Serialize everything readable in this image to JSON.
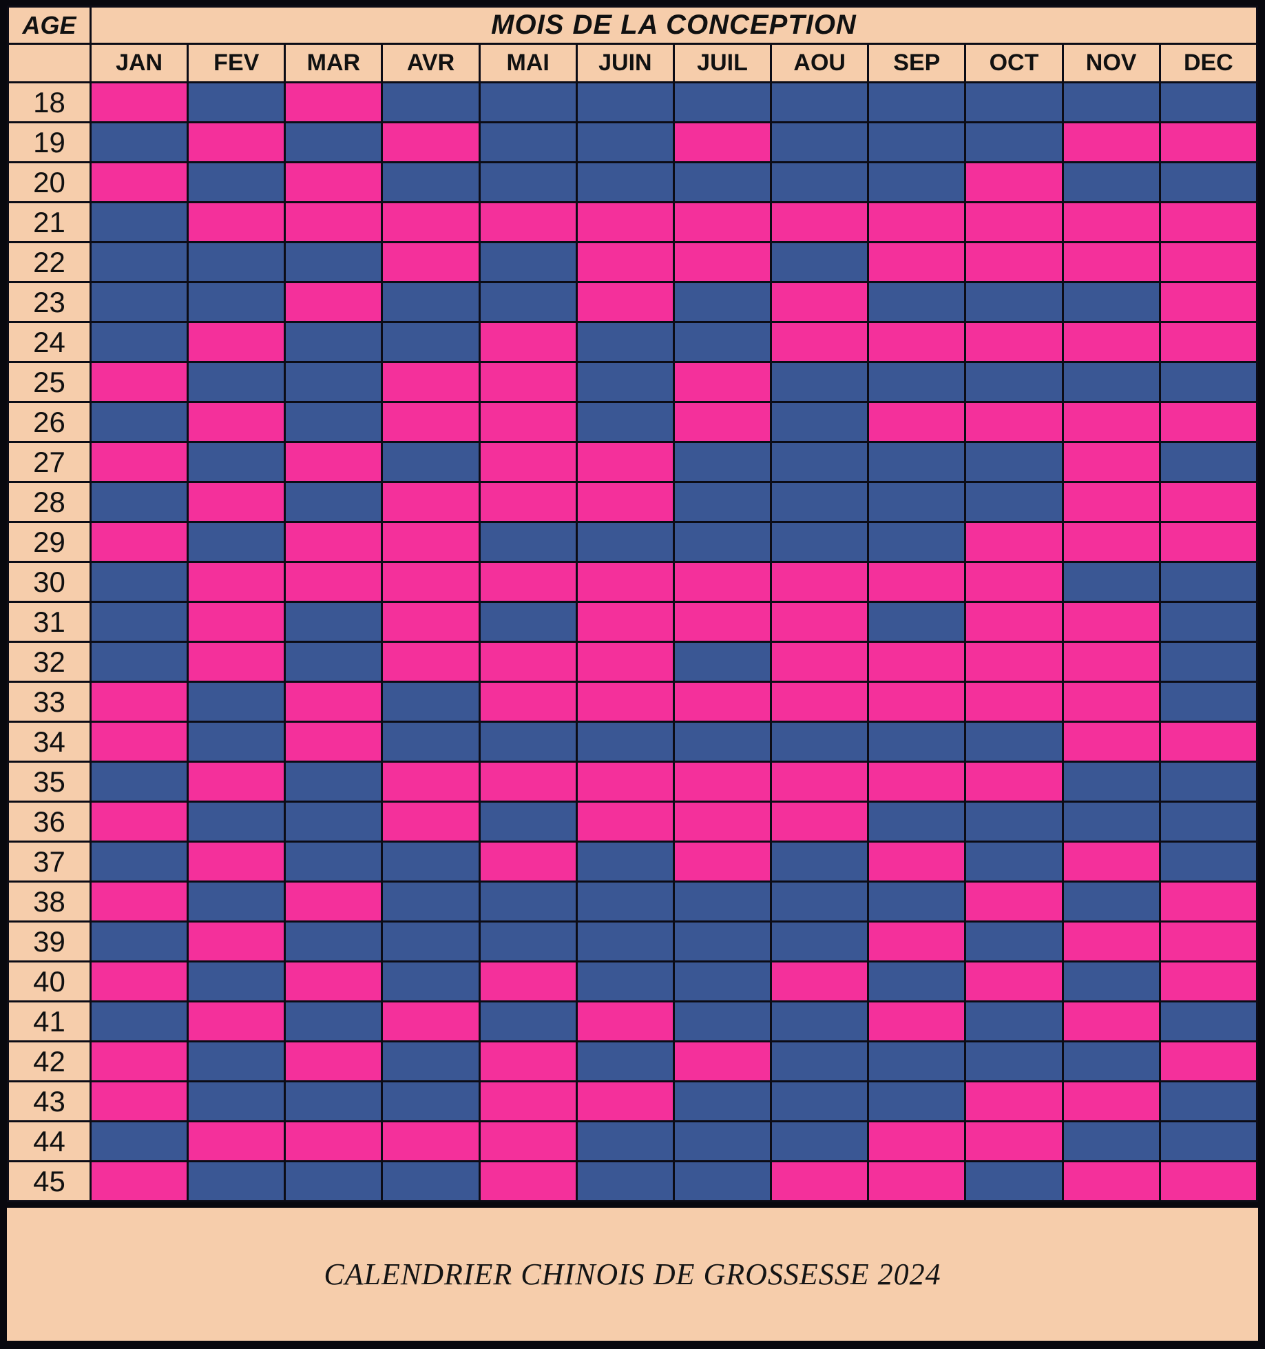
{
  "header": {
    "age_label": "AGE",
    "months_title": "MOIS DE LA CONCEPTION"
  },
  "footer": {
    "caption": "CALENDRIER CHINOIS DE GROSSESSE 2024"
  },
  "colors": {
    "girl_pink": "#f4309b",
    "boy_blue": "#3a5794",
    "header_peach": "#f6cdab",
    "grid_line": "#0c0c16"
  },
  "chart_data": {
    "type": "heatmap",
    "title": "CALENDRIER CHINOIS DE GROSSESSE 2024",
    "xlabel": "MOIS DE LA CONCEPTION",
    "ylabel": "AGE",
    "x_categories": [
      "JAN",
      "FEV",
      "MAR",
      "AVR",
      "MAI",
      "JUIN",
      "JUIL",
      "AOU",
      "SEP",
      "OCT",
      "NOV",
      "DEC"
    ],
    "y_categories": [
      18,
      19,
      20,
      21,
      22,
      23,
      24,
      25,
      26,
      27,
      28,
      29,
      30,
      31,
      32,
      33,
      34,
      35,
      36,
      37,
      38,
      39,
      40,
      41,
      42,
      43,
      44,
      45
    ],
    "value_legend": "P = pink cell, B = blue cell",
    "cell_colors": {
      "P": "#f4309b",
      "B": "#3a5794"
    },
    "rows": [
      {
        "age": 18,
        "cells": "PBPBBBBBBBBB"
      },
      {
        "age": 19,
        "cells": "BPBPBBPBBBPP"
      },
      {
        "age": 20,
        "cells": "PBPBBBBBBPBB"
      },
      {
        "age": 21,
        "cells": "BPPPPPPPPPPP"
      },
      {
        "age": 22,
        "cells": "BBBPBPPBPPPP"
      },
      {
        "age": 23,
        "cells": "BBPBBPBPBBBP"
      },
      {
        "age": 24,
        "cells": "BPBBPBBPPPPP"
      },
      {
        "age": 25,
        "cells": "PBBPPBPBBBBB"
      },
      {
        "age": 26,
        "cells": "BPBPPBPBPPPP"
      },
      {
        "age": 27,
        "cells": "PBPBPPBBBBPB"
      },
      {
        "age": 28,
        "cells": "BPBPPPBBBBPP"
      },
      {
        "age": 29,
        "cells": "PBPPBBBBBPPP"
      },
      {
        "age": 30,
        "cells": "BPPPPPPPPPBB"
      },
      {
        "age": 31,
        "cells": "BPBPBPPPBPPB"
      },
      {
        "age": 32,
        "cells": "BPBPPPBPPPPB"
      },
      {
        "age": 33,
        "cells": "PBPBPPPPPPPB"
      },
      {
        "age": 34,
        "cells": "PBPBBBBBBBPP"
      },
      {
        "age": 35,
        "cells": "BPBPPPPPPPBB"
      },
      {
        "age": 36,
        "cells": "PBBPBPPPBBBB"
      },
      {
        "age": 37,
        "cells": "BPBBPBPBPBPB"
      },
      {
        "age": 38,
        "cells": "PBPBBBBBBPBP"
      },
      {
        "age": 39,
        "cells": "BPBBBBBBPBPP"
      },
      {
        "age": 40,
        "cells": "PBPBPBBPBPBP"
      },
      {
        "age": 41,
        "cells": "BPBPBPBBPBPB"
      },
      {
        "age": 42,
        "cells": "PBPBPBPBBBBP"
      },
      {
        "age": 43,
        "cells": "PBBBPPBBBPPB"
      },
      {
        "age": 44,
        "cells": "BPPPPBBBPPBB"
      },
      {
        "age": 45,
        "cells": "PBBBPBBPPBPP"
      }
    ]
  }
}
